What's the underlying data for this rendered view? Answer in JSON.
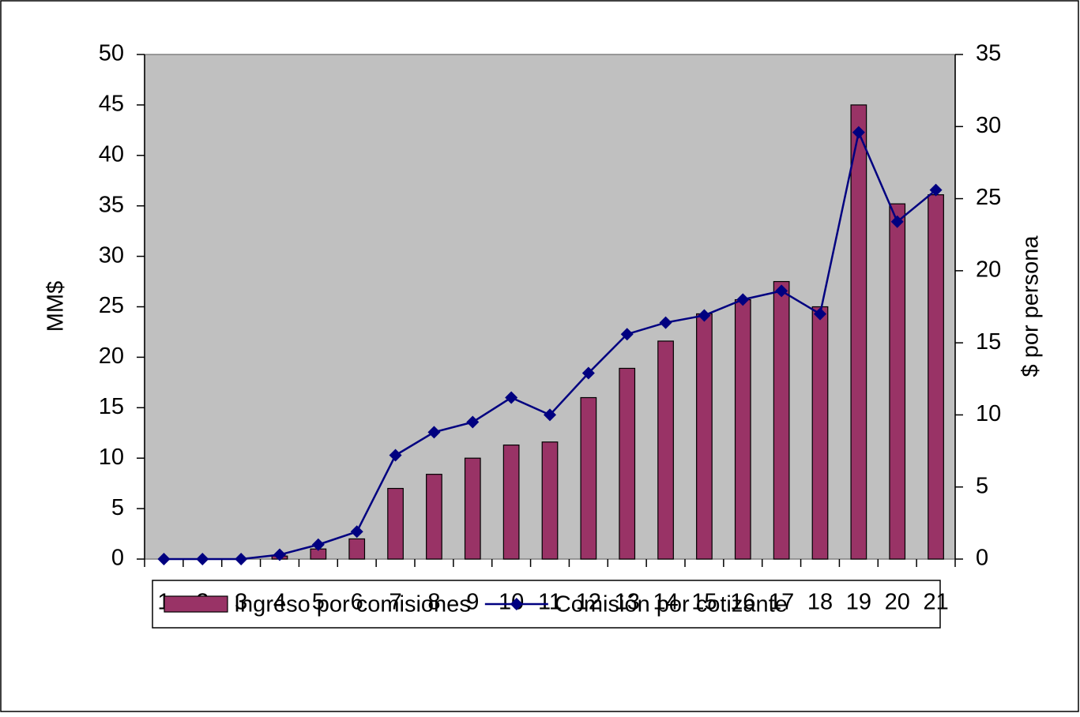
{
  "chart_data": {
    "type": "bar_line",
    "categories": [
      "1",
      "2",
      "3",
      "4",
      "5",
      "6",
      "7",
      "8",
      "9",
      "10",
      "11",
      "12",
      "13",
      "14",
      "15",
      "16",
      "17",
      "18",
      "19",
      "20",
      "21"
    ],
    "series": [
      {
        "name": "Ingreso por comisiones",
        "type": "bar",
        "color": "#993366",
        "values": [
          0,
          0,
          0,
          0.3,
          1.0,
          2.0,
          7.0,
          8.4,
          10.0,
          11.3,
          11.6,
          16.0,
          18.9,
          21.6,
          24.3,
          25.7,
          27.5,
          25.0,
          45.0,
          35.2,
          36.1
        ]
      },
      {
        "name": "Comisión por cotizante",
        "type": "line",
        "axis": "y2",
        "color": "#000080",
        "values": [
          0,
          0,
          0,
          0.3,
          1.0,
          1.9,
          7.2,
          8.8,
          9.5,
          11.2,
          10.0,
          12.9,
          15.6,
          16.4,
          16.9,
          18.0,
          18.6,
          17.0,
          29.6,
          23.4,
          25.6
        ]
      }
    ],
    "ylabel": "MM$",
    "y2label": "$ por persona",
    "ylim": [
      0,
      50
    ],
    "yticks": [
      0,
      5,
      10,
      15,
      20,
      25,
      30,
      35,
      40,
      45,
      50
    ],
    "y2lim": [
      0,
      35
    ],
    "y2ticks": [
      0,
      5,
      10,
      15,
      20,
      25,
      30,
      35
    ],
    "plot_background": "#c0c0c0",
    "legend": "bottom"
  }
}
